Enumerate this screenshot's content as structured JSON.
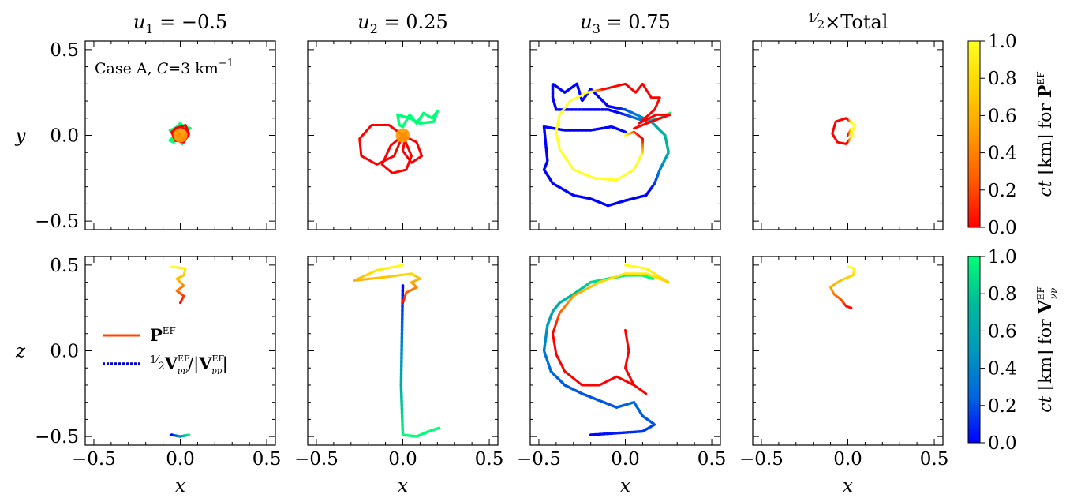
{
  "columns": [
    {
      "key": "u1",
      "title_var": "u",
      "title_sub": "1",
      "title_rest": " = −0.5"
    },
    {
      "key": "u2",
      "title_var": "u",
      "title_sub": "2",
      "title_rest": " = 0.25"
    },
    {
      "key": "u3",
      "title_var": "u",
      "title_sub": "3",
      "title_rest": " = 0.75"
    },
    {
      "key": "total",
      "title_num": "1",
      "title_den": "2",
      "title_rest": "×Total"
    }
  ],
  "annotation": {
    "prefix": "Case A, ",
    "var": "C",
    "rest": "=3 km",
    "sup": "−1"
  },
  "axes": {
    "xlabel": "x",
    "ylabel_top": "y",
    "ylabel_bottom": "z",
    "xlim": [
      -0.55,
      0.55
    ],
    "ylim": [
      -0.55,
      0.55
    ],
    "major_ticks": [
      -0.5,
      0.0,
      0.5
    ],
    "tick_labels": [
      "−0.5",
      "0.0",
      "0.5"
    ],
    "minor_step": 0.1
  },
  "legend": {
    "p_label": "P",
    "p_sup": "EF",
    "v_label_num": "1",
    "v_label_den": "2",
    "v_label": "V",
    "v_sub": "νν",
    "v_sup": "EF"
  },
  "colorbars": [
    {
      "name": "P",
      "label_prefix": "ct [km] for ",
      "sub": "",
      "sup": "EF",
      "ticks": [
        "0.0",
        "0.2",
        "0.4",
        "0.6",
        "0.8",
        "1.0"
      ],
      "colors": [
        "#ff0000",
        "#ff5a00",
        "#ff9b00",
        "#ffd400",
        "#ffff22"
      ]
    },
    {
      "name": "V",
      "label_prefix": "ct [km] for ",
      "sub": "νν",
      "sup": "EF",
      "ticks": [
        "0.0",
        "0.2",
        "0.4",
        "0.6",
        "0.8",
        "1.0"
      ],
      "colors": [
        "#0000ff",
        "#0066dd",
        "#0099bb",
        "#00bb99",
        "#00ff77"
      ]
    }
  ],
  "chart_data": {
    "type": "line",
    "panels": [
      {
        "row": "y",
        "col": "u1",
        "series": [
          {
            "name": "V",
            "style": "dotted",
            "points": [
              [
                -0.06,
                -0.03
              ],
              [
                -0.04,
                -0.04
              ],
              [
                -0.01,
                -0.02
              ],
              [
                0.01,
                -0.05
              ],
              [
                0.03,
                -0.02
              ],
              [
                0.05,
                0.0
              ],
              [
                0.03,
                0.03
              ],
              [
                0.06,
                0.04
              ],
              [
                0.02,
                0.05
              ],
              [
                0.0,
                0.07
              ],
              [
                -0.03,
                0.04
              ],
              [
                -0.06,
                0.03
              ],
              [
                -0.03,
                0.0
              ],
              [
                -0.06,
                -0.03
              ]
            ]
          },
          {
            "name": "P",
            "style": "solid",
            "points": [
              [
                0.0,
                0.0
              ],
              [
                -0.03,
                0.04
              ],
              [
                0.03,
                0.06
              ],
              [
                0.05,
                0.01
              ],
              [
                0.02,
                -0.04
              ],
              [
                -0.03,
                -0.03
              ],
              [
                -0.05,
                0.02
              ],
              [
                0.0,
                0.05
              ],
              [
                0.04,
                0.03
              ],
              [
                0.02,
                -0.02
              ],
              [
                -0.02,
                0.0
              ],
              [
                0.0,
                0.0
              ]
            ]
          }
        ]
      },
      {
        "row": "y",
        "col": "u2",
        "series": [
          {
            "name": "V",
            "style": "dotted",
            "points": [
              [
                0.0,
                0.05
              ],
              [
                0.04,
                0.12
              ],
              [
                0.08,
                0.07
              ],
              [
                0.12,
                0.13
              ],
              [
                0.17,
                0.1
              ],
              [
                0.2,
                0.14
              ],
              [
                0.18,
                0.08
              ],
              [
                0.1,
                0.07
              ],
              [
                0.04,
                0.1
              ],
              [
                -0.03,
                0.12
              ],
              [
                -0.02,
                0.06
              ],
              [
                0.0,
                0.05
              ]
            ]
          },
          {
            "name": "P",
            "style": "solid",
            "points": [
              [
                0.0,
                0.0
              ],
              [
                -0.08,
                0.06
              ],
              [
                -0.18,
                0.06
              ],
              [
                -0.25,
                -0.02
              ],
              [
                -0.24,
                -0.12
              ],
              [
                -0.15,
                -0.17
              ],
              [
                -0.05,
                -0.12
              ],
              [
                0.0,
                0.0
              ],
              [
                0.05,
                -0.12
              ],
              [
                0.02,
                -0.2
              ],
              [
                -0.06,
                -0.22
              ],
              [
                -0.12,
                -0.17
              ],
              [
                -0.07,
                -0.06
              ],
              [
                0.0,
                0.0
              ],
              [
                0.08,
                -0.04
              ],
              [
                0.11,
                -0.12
              ],
              [
                0.05,
                -0.16
              ],
              [
                0.0,
                -0.09
              ],
              [
                0.02,
                0.02
              ],
              [
                0.0,
                0.0
              ]
            ]
          }
        ]
      },
      {
        "row": "y",
        "col": "u3",
        "series": [
          {
            "name": "V",
            "style": "dotted",
            "points": [
              [
                0.0,
                0.02
              ],
              [
                -0.08,
                0.05
              ],
              [
                -0.2,
                0.03
              ],
              [
                -0.35,
                0.03
              ],
              [
                -0.47,
                0.05
              ],
              [
                -0.45,
                -0.15
              ],
              [
                -0.47,
                -0.2
              ],
              [
                -0.42,
                -0.28
              ],
              [
                -0.3,
                -0.35
              ],
              [
                -0.2,
                -0.37
              ],
              [
                -0.1,
                -0.41
              ],
              [
                0.0,
                -0.38
              ],
              [
                0.12,
                -0.35
              ],
              [
                0.17,
                -0.28
              ],
              [
                0.2,
                -0.2
              ],
              [
                0.25,
                -0.1
              ],
              [
                0.23,
                0.0
              ],
              [
                0.15,
                0.08
              ],
              [
                0.0,
                0.15
              ],
              [
                -0.1,
                0.17
              ],
              [
                -0.2,
                0.27
              ],
              [
                -0.25,
                0.2
              ],
              [
                -0.28,
                0.3
              ],
              [
                -0.35,
                0.25
              ],
              [
                -0.42,
                0.3
              ],
              [
                -0.42,
                0.22
              ],
              [
                -0.4,
                0.15
              ],
              [
                -0.3,
                0.15
              ],
              [
                -0.2,
                0.15
              ],
              [
                -0.1,
                0.15
              ],
              [
                0.0,
                0.12
              ],
              [
                0.12,
                0.08
              ],
              [
                0.2,
                0.1
              ],
              [
                0.26,
                0.13
              ]
            ]
          },
          {
            "name": "P",
            "style": "solid",
            "points": [
              [
                0.0,
                0.0
              ],
              [
                0.05,
                0.02
              ],
              [
                0.1,
                -0.02
              ],
              [
                0.1,
                -0.1
              ],
              [
                0.05,
                -0.2
              ],
              [
                -0.05,
                -0.26
              ],
              [
                -0.18,
                -0.25
              ],
              [
                -0.3,
                -0.2
              ],
              [
                -0.38,
                -0.08
              ],
              [
                -0.4,
                0.02
              ],
              [
                -0.38,
                0.12
              ],
              [
                -0.32,
                0.2
              ],
              [
                -0.22,
                0.25
              ],
              [
                -0.12,
                0.27
              ],
              [
                0.0,
                0.3
              ],
              [
                0.06,
                0.25
              ],
              [
                0.1,
                0.3
              ],
              [
                0.15,
                0.22
              ],
              [
                0.2,
                0.22
              ],
              [
                0.17,
                0.15
              ],
              [
                0.08,
                0.07
              ],
              [
                0.18,
                0.12
              ],
              [
                0.26,
                0.12
              ],
              [
                0.15,
                0.08
              ],
              [
                0.05,
                0.04
              ]
            ]
          }
        ]
      },
      {
        "row": "y",
        "col": "total",
        "series": [
          {
            "name": "P",
            "style": "solid",
            "points": [
              [
                0.02,
                0.0
              ],
              [
                0.04,
                0.06
              ],
              [
                -0.01,
                0.1
              ],
              [
                -0.07,
                0.08
              ],
              [
                -0.09,
                0.01
              ],
              [
                -0.06,
                -0.04
              ],
              [
                -0.01,
                -0.05
              ],
              [
                0.03,
                0.0
              ],
              [
                0.02,
                0.04
              ],
              [
                0.0,
                0.0
              ]
            ]
          }
        ]
      },
      {
        "row": "z",
        "col": "u1",
        "series": [
          {
            "name": "V",
            "style": "dotted",
            "points": [
              [
                -0.05,
                -0.49
              ],
              [
                0.0,
                -0.5
              ],
              [
                0.05,
                -0.49
              ]
            ]
          },
          {
            "name": "P",
            "style": "solid",
            "points": [
              [
                -0.05,
                0.49
              ],
              [
                0.03,
                0.48
              ],
              [
                0.02,
                0.44
              ],
              [
                -0.02,
                0.42
              ],
              [
                0.02,
                0.38
              ],
              [
                -0.02,
                0.35
              ],
              [
                0.02,
                0.32
              ],
              [
                0.0,
                0.28
              ]
            ]
          }
        ]
      },
      {
        "row": "z",
        "col": "u2",
        "series": [
          {
            "name": "V",
            "style": "dotted",
            "points": [
              [
                0.0,
                0.38
              ],
              [
                -0.01,
                -0.2
              ],
              [
                0.0,
                -0.49
              ],
              [
                0.08,
                -0.5
              ],
              [
                0.15,
                -0.47
              ],
              [
                0.21,
                -0.45
              ]
            ]
          },
          {
            "name": "P",
            "style": "solid",
            "points": [
              [
                0.0,
                0.5
              ],
              [
                -0.15,
                0.47
              ],
              [
                -0.28,
                0.41
              ],
              [
                -0.1,
                0.43
              ],
              [
                0.05,
                0.45
              ],
              [
                0.1,
                0.42
              ],
              [
                0.05,
                0.4
              ],
              [
                0.08,
                0.37
              ],
              [
                0.02,
                0.34
              ],
              [
                0.0,
                0.28
              ]
            ]
          }
        ]
      },
      {
        "row": "z",
        "col": "u3",
        "series": [
          {
            "name": "V",
            "style": "dotted",
            "points": [
              [
                -0.2,
                -0.49
              ],
              [
                -0.05,
                -0.48
              ],
              [
                0.1,
                -0.47
              ],
              [
                0.17,
                -0.43
              ],
              [
                0.1,
                -0.38
              ],
              [
                0.05,
                -0.3
              ],
              [
                -0.05,
                -0.33
              ],
              [
                -0.15,
                -0.29
              ],
              [
                -0.25,
                -0.25
              ],
              [
                -0.35,
                -0.2
              ],
              [
                -0.43,
                -0.12
              ],
              [
                -0.47,
                0.0
              ],
              [
                -0.45,
                0.15
              ],
              [
                -0.42,
                0.23
              ],
              [
                -0.38,
                0.28
              ],
              [
                -0.3,
                0.33
              ],
              [
                -0.2,
                0.4
              ],
              [
                -0.1,
                0.42
              ],
              [
                0.0,
                0.44
              ],
              [
                0.1,
                0.44
              ],
              [
                0.16,
                0.42
              ]
            ]
          },
          {
            "name": "P",
            "style": "solid",
            "points": [
              [
                0.0,
                0.5
              ],
              [
                0.12,
                0.48
              ],
              [
                0.25,
                0.4
              ],
              [
                0.12,
                0.45
              ],
              [
                0.0,
                0.45
              ],
              [
                -0.15,
                0.4
              ],
              [
                -0.3,
                0.32
              ],
              [
                -0.38,
                0.22
              ],
              [
                -0.42,
                0.1
              ],
              [
                -0.4,
                -0.02
              ],
              [
                -0.35,
                -0.12
              ],
              [
                -0.25,
                -0.2
              ],
              [
                -0.15,
                -0.2
              ],
              [
                -0.05,
                -0.15
              ],
              [
                0.05,
                -0.2
              ],
              [
                0.12,
                -0.25
              ],
              [
                0.05,
                -0.2
              ],
              [
                0.0,
                -0.1
              ],
              [
                0.02,
                0.0
              ],
              [
                0.0,
                0.12
              ]
            ]
          }
        ]
      },
      {
        "row": "z",
        "col": "total",
        "series": [
          {
            "name": "P",
            "style": "solid",
            "points": [
              [
                0.0,
                0.49
              ],
              [
                0.04,
                0.48
              ],
              [
                0.03,
                0.44
              ],
              [
                -0.02,
                0.42
              ],
              [
                -0.06,
                0.4
              ],
              [
                -0.1,
                0.37
              ],
              [
                -0.08,
                0.33
              ],
              [
                -0.04,
                0.3
              ],
              [
                -0.01,
                0.26
              ],
              [
                0.02,
                0.25
              ]
            ]
          }
        ]
      }
    ]
  }
}
